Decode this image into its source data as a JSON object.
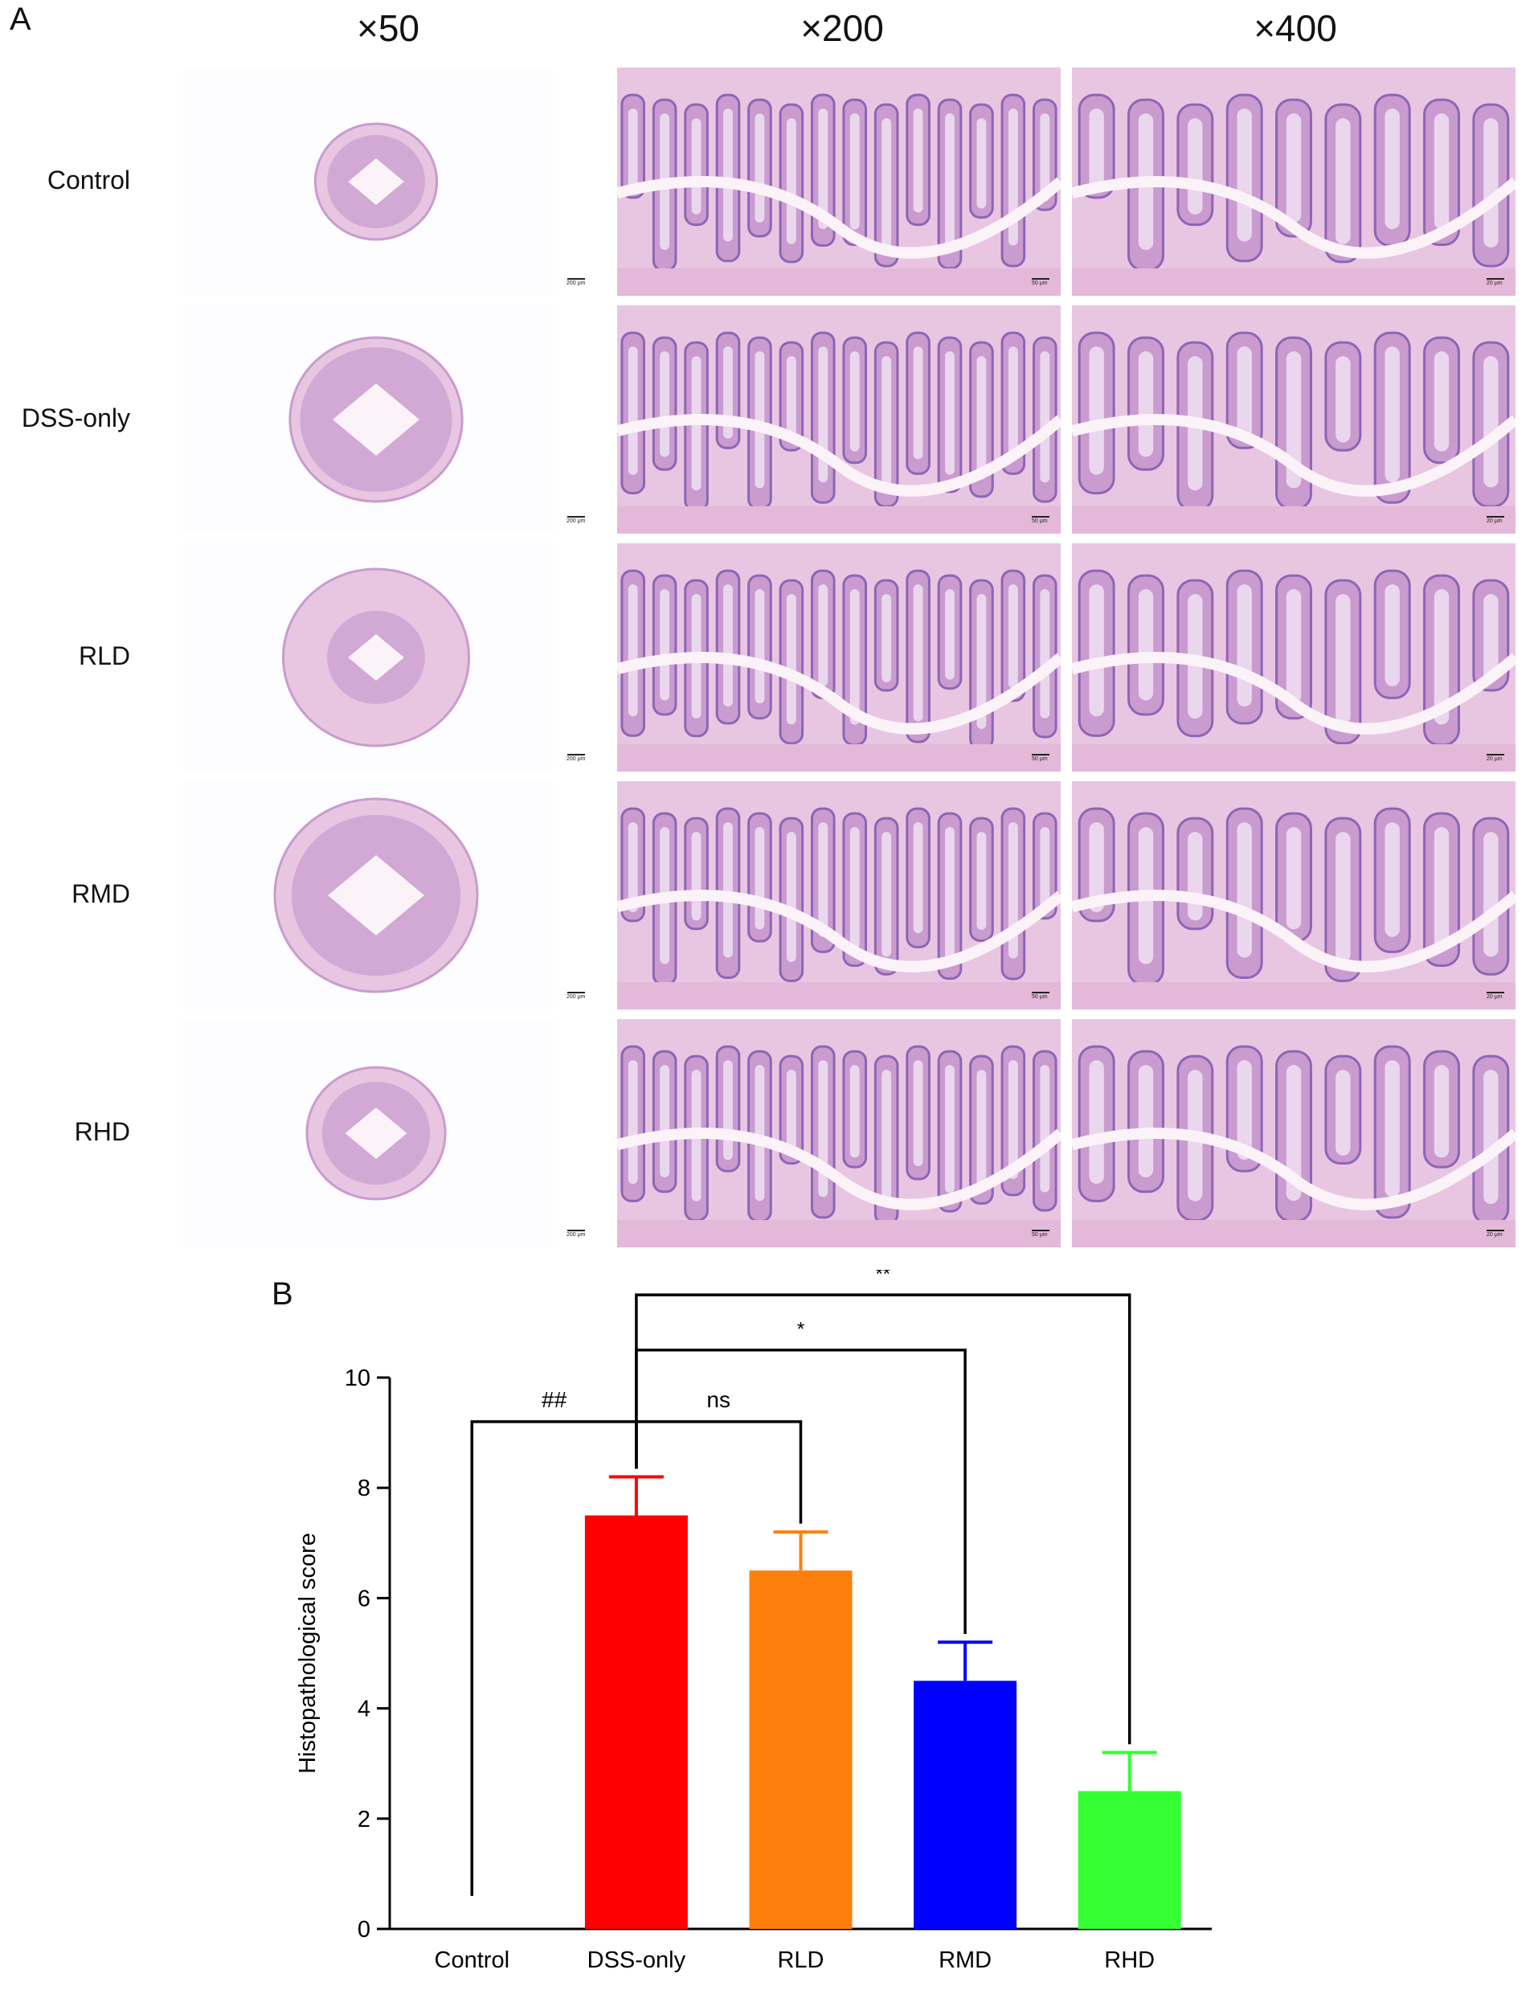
{
  "panel_a": {
    "letter": "A",
    "magnifications": [
      "×50",
      "×200",
      "×400"
    ],
    "rows": [
      "Control",
      "DSS-only",
      "RLD",
      "RMD",
      "RHD"
    ],
    "scale_bars": [
      "200 μm",
      "50 μm",
      "20 μm"
    ],
    "colors": {
      "stain_light": "#e8c6e2",
      "stain_mid": "#c99bcf",
      "stain_dark": "#8e65b5",
      "lumen": "#fbf3f8"
    }
  },
  "panel_b": {
    "letter": "B"
  },
  "chart_data": {
    "type": "bar",
    "categories": [
      "Control",
      "DSS-only",
      "RLD",
      "RMD",
      "RHD"
    ],
    "values": [
      0,
      7.5,
      6.5,
      4.5,
      2.5
    ],
    "errors": [
      0,
      0.7,
      0.7,
      0.7,
      0.7
    ],
    "colors": [
      "#000000",
      "#ff0000",
      "#ff7f0e",
      "#0000ff",
      "#33ff33"
    ],
    "ylabel": "Histopathological score",
    "xlabel": "",
    "ylim": [
      0,
      10
    ],
    "yticks": [
      0,
      2,
      4,
      6,
      8,
      10
    ],
    "grid": false,
    "significance": [
      {
        "from": "Control",
        "to": "DSS-only",
        "label": "##"
      },
      {
        "from": "DSS-only",
        "to": "RLD",
        "label": "ns"
      },
      {
        "from": "DSS-only",
        "to": "RMD",
        "label": "*"
      },
      {
        "from": "DSS-only",
        "to": "RHD",
        "label": "**"
      }
    ]
  }
}
